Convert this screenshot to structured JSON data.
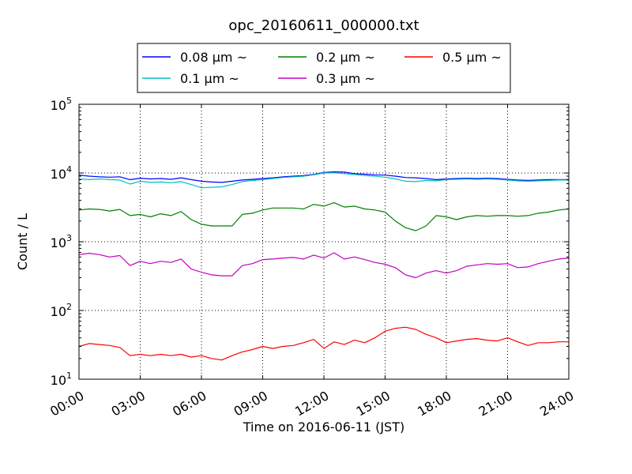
{
  "chart_data": {
    "type": "line",
    "title": "opc_20160611_000000.txt",
    "xlabel": "Time on 2016-06-11 (JST)",
    "ylabel": "Count / L",
    "x_unit": "hours",
    "xlim": [
      0,
      24
    ],
    "ylim": [
      10,
      100000
    ],
    "yscale": "log",
    "grid": true,
    "legend_position": "top-center",
    "x_ticks": [
      {
        "value": 0,
        "label": "00:00"
      },
      {
        "value": 3,
        "label": "03:00"
      },
      {
        "value": 6,
        "label": "06:00"
      },
      {
        "value": 9,
        "label": "09:00"
      },
      {
        "value": 12,
        "label": "12:00"
      },
      {
        "value": 15,
        "label": "15:00"
      },
      {
        "value": 18,
        "label": "18:00"
      },
      {
        "value": 21,
        "label": "21:00"
      },
      {
        "value": 24,
        "label": "24:00"
      }
    ],
    "y_ticks": [
      {
        "value": 10,
        "base": "10",
        "exp": "1"
      },
      {
        "value": 100,
        "base": "10",
        "exp": "2"
      },
      {
        "value": 1000,
        "base": "10",
        "exp": "3"
      },
      {
        "value": 10000,
        "base": "10",
        "exp": "4"
      },
      {
        "value": 100000,
        "base": "10",
        "exp": "5"
      }
    ],
    "x": [
      0,
      0.5,
      1,
      1.5,
      2,
      2.5,
      3,
      3.5,
      4,
      4.5,
      5,
      5.5,
      6,
      6.5,
      7,
      7.5,
      8,
      8.5,
      9,
      9.5,
      10,
      10.5,
      11,
      11.5,
      12,
      12.5,
      13,
      13.5,
      14,
      14.5,
      15,
      15.5,
      16,
      16.5,
      17,
      17.5,
      18,
      18.5,
      19,
      19.5,
      20,
      20.5,
      21,
      21.5,
      22,
      22.5,
      23,
      23.5,
      24
    ],
    "series": [
      {
        "name": "0.08 μm ~",
        "color": "#0000ff",
        "values": [
          9300,
          9000,
          8800,
          8700,
          8800,
          8000,
          8400,
          8200,
          8300,
          8100,
          8500,
          8000,
          7600,
          7400,
          7300,
          7600,
          7900,
          8100,
          8300,
          8500,
          8800,
          9000,
          9200,
          9500,
          10200,
          10400,
          10300,
          9800,
          9600,
          9400,
          9300,
          9000,
          8600,
          8500,
          8300,
          8000,
          8200,
          8300,
          8400,
          8300,
          8400,
          8300,
          8100,
          7900,
          7800,
          7900,
          8000,
          8000,
          8000
        ]
      },
      {
        "name": "0.1 μm ~",
        "color": "#00bfbf",
        "values": [
          8200,
          8000,
          8200,
          8000,
          7900,
          6900,
          7600,
          7300,
          7400,
          7200,
          7500,
          6800,
          6100,
          6200,
          6300,
          6800,
          7500,
          7800,
          8000,
          8300,
          8600,
          8800,
          9000,
          9400,
          10000,
          10100,
          9800,
          9500,
          9200,
          9000,
          8700,
          8200,
          7600,
          7500,
          7800,
          7700,
          8000,
          8100,
          8200,
          8100,
          8200,
          8100,
          7900,
          7700,
          7600,
          7700,
          7800,
          7900,
          7900
        ]
      },
      {
        "name": "0.2 μm ~",
        "color": "#008000",
        "values": [
          2900,
          3000,
          2950,
          2800,
          2950,
          2400,
          2500,
          2300,
          2550,
          2400,
          2750,
          2100,
          1800,
          1700,
          1700,
          1700,
          2500,
          2600,
          2900,
          3100,
          3100,
          3100,
          3000,
          3500,
          3300,
          3700,
          3200,
          3300,
          3000,
          2900,
          2700,
          2000,
          1600,
          1450,
          1700,
          2400,
          2300,
          2100,
          2300,
          2400,
          2350,
          2400,
          2400,
          2350,
          2400,
          2600,
          2700,
          2900,
          3000
        ]
      },
      {
        "name": "0.3 μm ~",
        "color": "#bf00bf",
        "values": [
          650,
          680,
          650,
          600,
          630,
          450,
          520,
          480,
          520,
          500,
          560,
          400,
          360,
          330,
          320,
          320,
          450,
          480,
          550,
          560,
          580,
          590,
          560,
          640,
          580,
          690,
          560,
          600,
          550,
          500,
          470,
          420,
          330,
          300,
          350,
          380,
          350,
          380,
          440,
          460,
          480,
          470,
          480,
          420,
          430,
          480,
          520,
          560,
          580
        ]
      },
      {
        "name": "0.5 μm ~",
        "color": "#ff0000",
        "values": [
          30,
          33,
          32,
          31,
          29,
          22,
          23,
          22,
          23,
          22,
          23,
          21,
          22,
          20,
          19,
          22,
          25,
          27,
          30,
          28,
          30,
          31,
          34,
          38,
          28,
          35,
          32,
          37,
          34,
          40,
          50,
          55,
          57,
          53,
          45,
          40,
          34,
          36,
          38,
          39,
          37,
          36,
          40,
          35,
          31,
          34,
          34,
          35,
          35
        ]
      }
    ]
  }
}
